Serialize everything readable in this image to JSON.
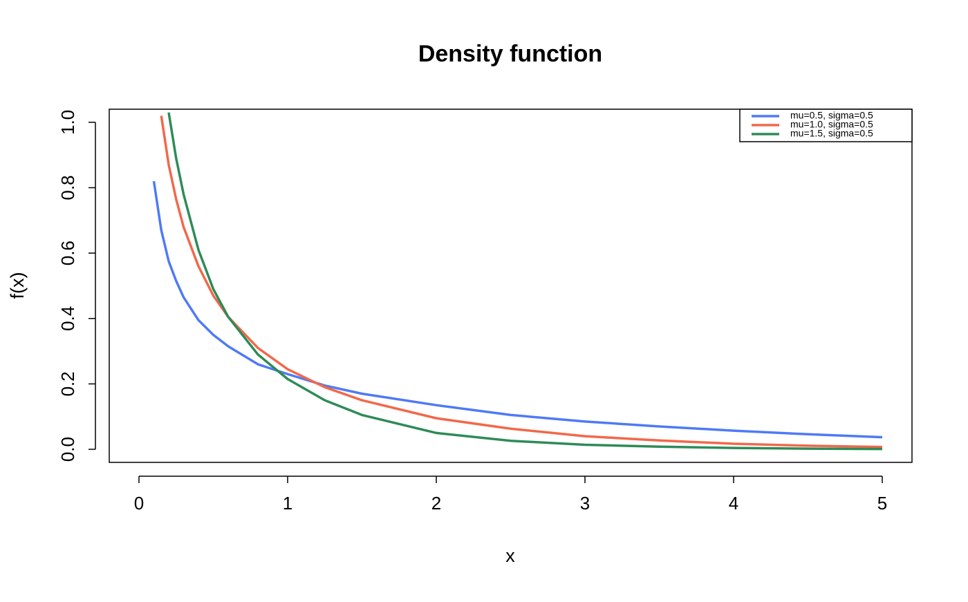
{
  "chart_data": {
    "type": "line",
    "title": "Density function",
    "x_label": "x",
    "y_label": "f(x)",
    "x": [
      0.1,
      0.15,
      0.2,
      0.25,
      0.3,
      0.4,
      0.5,
      0.6,
      0.8,
      1,
      1.25,
      1.5,
      2,
      2.5,
      3,
      3.5,
      4,
      4.5,
      5
    ],
    "series": [
      {
        "name": "mu=0.5, sigma=0.5",
        "color": "#4f7af5",
        "values": [
          0.82,
          0.67,
          0.575,
          0.515,
          0.465,
          0.395,
          0.35,
          0.315,
          0.26,
          0.23,
          0.195,
          0.17,
          0.135,
          0.105,
          0.085,
          0.07,
          0.057,
          0.046,
          0.037
        ]
      },
      {
        "name": "mu=1.0, sigma=0.5",
        "color": "#f2684a",
        "values": [
          null,
          1.02,
          0.87,
          0.765,
          0.68,
          0.56,
          0.47,
          0.405,
          0.31,
          0.245,
          0.19,
          0.15,
          0.095,
          0.063,
          0.04,
          0.027,
          0.017,
          0.011,
          0.007
        ]
      },
      {
        "name": "mu=1.5, sigma=0.5",
        "color": "#2e8b57",
        "values": [
          null,
          null,
          1.03,
          0.89,
          0.78,
          0.61,
          0.49,
          0.405,
          0.29,
          0.215,
          0.15,
          0.105,
          0.05,
          0.026,
          0.014,
          0.008,
          0.004,
          0.002,
          0.001
        ]
      }
    ],
    "xlim": [
      -0.2,
      5.2
    ],
    "ylim": [
      -0.04,
      1.04
    ],
    "xticks": [
      0,
      1,
      2,
      3,
      4,
      5
    ],
    "yticks": [
      {
        "value": 0,
        "label": "0.0"
      },
      0.2,
      0.4,
      0.6,
      0.8,
      {
        "value": 1,
        "label": "1.0"
      }
    ],
    "legend": "top-right"
  }
}
